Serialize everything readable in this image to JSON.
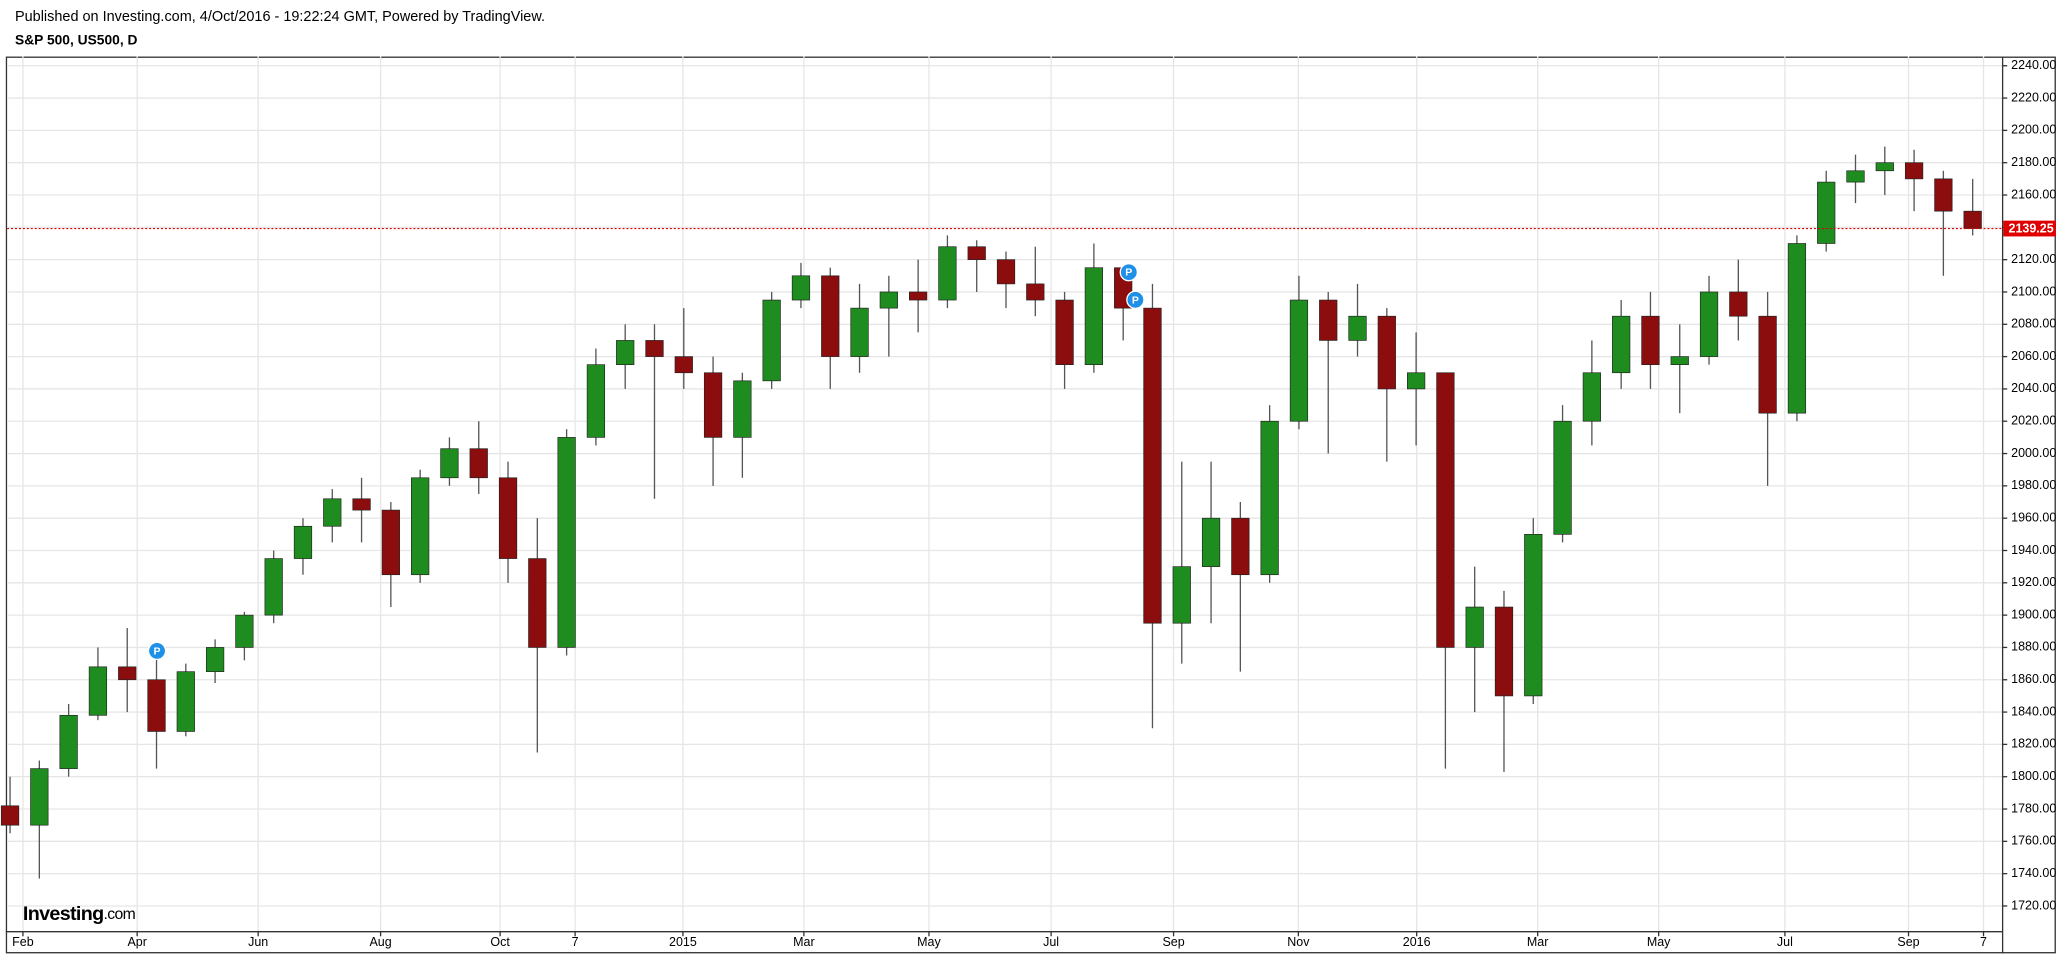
{
  "header": {
    "published": "Published on Investing.com, 4/Oct/2016 - 19:22:24 GMT, Powered by TradingView.",
    "symbol": "S&P 500, US500, D"
  },
  "logo": {
    "name": "Investing",
    "suffix": ".com"
  },
  "chart_data": {
    "type": "candlestick",
    "up_color": "#1e8c1e",
    "down_color": "#8b0d0d",
    "grid": true,
    "grid_color": "#e6e6e6",
    "x": [
      0,
      1,
      2,
      3,
      4,
      5,
      6,
      7,
      8,
      9,
      10,
      11,
      12,
      13,
      14,
      15,
      16,
      17,
      18,
      19,
      20,
      21,
      22,
      23,
      24,
      25,
      26,
      27,
      28,
      29,
      30,
      31,
      32,
      33,
      34,
      35,
      36,
      37,
      38,
      39,
      40,
      41,
      42,
      43,
      44,
      45,
      46,
      47,
      48,
      49,
      50,
      51,
      52,
      53,
      54,
      55,
      56,
      57,
      58,
      59,
      60,
      61,
      62,
      63,
      64,
      65,
      66,
      67
    ],
    "open": [
      1782,
      1770,
      1805,
      1838,
      1868,
      1860,
      1828,
      1865,
      1880,
      1900,
      1935,
      1955,
      1972,
      1965,
      1925,
      1985,
      2003,
      1985,
      1935,
      1880,
      2010,
      2055,
      2070,
      2060,
      2050,
      2010,
      2045,
      2095,
      2110,
      2060,
      2090,
      2100,
      2095,
      2128,
      2120,
      2105,
      2095,
      2055,
      2115,
      2090,
      1895,
      1930,
      1960,
      1925,
      2020,
      2095,
      2070,
      2085,
      2040,
      2050,
      1880,
      1905,
      1850,
      1950,
      2020,
      2050,
      2085,
      2055,
      2060,
      2100,
      2085,
      2025,
      2130,
      2168,
      2175,
      2180,
      2170,
      2150
    ],
    "high": [
      1800,
      1810,
      1845,
      1880,
      1892,
      1875,
      1870,
      1885,
      1902,
      1940,
      1960,
      1978,
      1985,
      1970,
      1990,
      2010,
      2020,
      1995,
      1960,
      2015,
      2065,
      2080,
      2080,
      2090,
      2060,
      2050,
      2100,
      2118,
      2115,
      2105,
      2110,
      2120,
      2135,
      2132,
      2125,
      2128,
      2100,
      2130,
      2115,
      2105,
      1995,
      1995,
      1970,
      2030,
      2110,
      2100,
      2105,
      2090,
      2075,
      2050,
      1930,
      1915,
      1960,
      2030,
      2070,
      2095,
      2100,
      2080,
      2110,
      2120,
      2100,
      2135,
      2175,
      2185,
      2190,
      2188,
      2175,
      2170
    ],
    "low": [
      1765,
      1737,
      1800,
      1835,
      1840,
      1805,
      1825,
      1858,
      1872,
      1895,
      1925,
      1945,
      1945,
      1905,
      1920,
      1980,
      1975,
      1920,
      1815,
      1875,
      2005,
      2040,
      1972,
      2040,
      1980,
      1985,
      2040,
      2090,
      2040,
      2050,
      2060,
      2075,
      2090,
      2100,
      2090,
      2085,
      2040,
      2050,
      2070,
      1830,
      1870,
      1895,
      1865,
      1920,
      2015,
      2000,
      2060,
      1995,
      2005,
      1805,
      1840,
      1803,
      1845,
      1945,
      2005,
      2040,
      2040,
      2025,
      2055,
      2070,
      1980,
      2020,
      2125,
      2155,
      2160,
      2150,
      2110,
      2135
    ],
    "close": [
      1770,
      1805,
      1838,
      1868,
      1860,
      1828,
      1865,
      1880,
      1900,
      1935,
      1955,
      1972,
      1965,
      1925,
      1985,
      2003,
      1985,
      1935,
      1880,
      2010,
      2055,
      2070,
      2060,
      2050,
      2010,
      2045,
      2095,
      2110,
      2060,
      2090,
      2100,
      2095,
      2128,
      2120,
      2105,
      2095,
      2055,
      2115,
      2090,
      1895,
      1930,
      1960,
      1925,
      2020,
      2095,
      2070,
      2085,
      2040,
      2050,
      1880,
      1905,
      1850,
      1950,
      2020,
      2050,
      2085,
      2055,
      2060,
      2100,
      2085,
      2025,
      2130,
      2168,
      2175,
      2180,
      2170,
      2150,
      2139.25
    ],
    "last_price": 2139.25,
    "last_price_color": "#e00000",
    "xlim": [
      -0.1,
      68
    ],
    "xticks": [
      {
        "value": 0.44,
        "label": "Feb"
      },
      {
        "value": 4.34,
        "label": "Apr"
      },
      {
        "value": 8.47,
        "label": "Jun"
      },
      {
        "value": 12.65,
        "label": "Aug"
      },
      {
        "value": 16.73,
        "label": "Oct"
      },
      {
        "value": 19.29,
        "label": "7"
      },
      {
        "value": 22.97,
        "label": "2015"
      },
      {
        "value": 27.1,
        "label": "Mar"
      },
      {
        "value": 31.37,
        "label": "May"
      },
      {
        "value": 35.54,
        "label": "Jul"
      },
      {
        "value": 39.72,
        "label": "Sep"
      },
      {
        "value": 43.98,
        "label": "Nov"
      },
      {
        "value": 48.02,
        "label": "2016"
      },
      {
        "value": 52.15,
        "label": "Mar"
      },
      {
        "value": 56.28,
        "label": "May"
      },
      {
        "value": 60.59,
        "label": "Jul"
      },
      {
        "value": 64.81,
        "label": "Sep"
      },
      {
        "value": 67.37,
        "label": "7"
      }
    ],
    "ylim": [
      1704.5,
      2245.7
    ],
    "yticks": [
      {
        "value": 1720,
        "label": "1720.00"
      },
      {
        "value": 1740,
        "label": "1740.00"
      },
      {
        "value": 1760,
        "label": "1760.00"
      },
      {
        "value": 1780,
        "label": "1780.00"
      },
      {
        "value": 1800,
        "label": "1800.00"
      },
      {
        "value": 1820,
        "label": "1820.00"
      },
      {
        "value": 1840,
        "label": "1840.00"
      },
      {
        "value": 1860,
        "label": "1860.00"
      },
      {
        "value": 1880,
        "label": "1880.00"
      },
      {
        "value": 1900,
        "label": "1900.00"
      },
      {
        "value": 1920,
        "label": "1920.00"
      },
      {
        "value": 1940,
        "label": "1940.00"
      },
      {
        "value": 1960,
        "label": "1960.00"
      },
      {
        "value": 1980,
        "label": "1980.00"
      },
      {
        "value": 2000,
        "label": "2000.00"
      },
      {
        "value": 2020,
        "label": "2020.00"
      },
      {
        "value": 2040,
        "label": "2040.00"
      },
      {
        "value": 2060,
        "label": "2060.00"
      },
      {
        "value": 2080,
        "label": "2080.00"
      },
      {
        "value": 2100,
        "label": "2100.00"
      },
      {
        "value": 2120,
        "label": "2120.00"
      },
      {
        "value": 2140,
        "label": "2140.00"
      },
      {
        "value": 2160,
        "label": "2160.00"
      },
      {
        "value": 2180,
        "label": "2180.00"
      },
      {
        "value": 2200,
        "label": "2200.00"
      },
      {
        "value": 2220,
        "label": "2220.00"
      },
      {
        "value": 2240,
        "label": "2240.00"
      }
    ],
    "annotations": [
      {
        "label": "P"
      },
      {
        "label": "P"
      },
      {
        "label": "P"
      }
    ]
  }
}
